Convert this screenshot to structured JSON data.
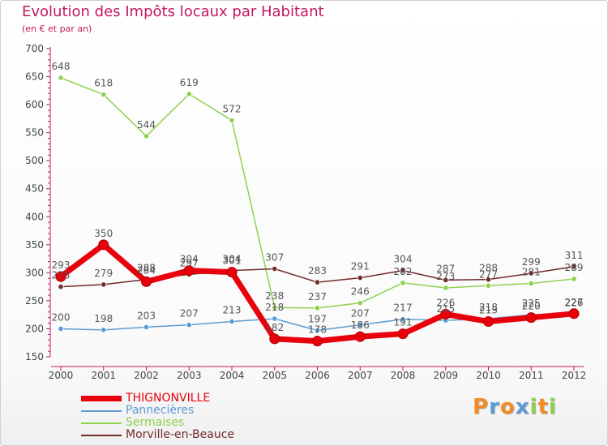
{
  "chart_data": {
    "type": "line",
    "title": "Evolution des Impôts locaux par Habitant",
    "subtitle": "(en € et par an)",
    "xlabel": "",
    "ylabel": "",
    "x": [
      "2000",
      "2001",
      "2002",
      "2003",
      "2004",
      "2005",
      "2006",
      "2007",
      "2008",
      "2009",
      "2010",
      "2011",
      "2012"
    ],
    "ylim": [
      150,
      700
    ],
    "yticks": [
      150,
      200,
      250,
      300,
      350,
      400,
      450,
      500,
      550,
      600,
      650,
      700
    ],
    "series": [
      {
        "name": "THIGNONVILLE",
        "color": "#e8000b",
        "values": [
          293,
          350,
          284,
          304,
          301,
          182,
          178,
          186,
          191,
          226,
          213,
          220,
          227
        ],
        "labels": [
          "293",
          "350",
          "284",
          "304",
          "301",
          "182",
          "178",
          "186",
          "191",
          "226",
          "213",
          "220",
          "227"
        ]
      },
      {
        "name": "Pannecières",
        "color": "#5b9bd5",
        "values": [
          200,
          198,
          203,
          207,
          213,
          218,
          197,
          207,
          217,
          215,
          218,
          225,
          226
        ],
        "labels": [
          "200",
          "198",
          "203",
          "207",
          "213",
          "218",
          "197",
          "207",
          "217",
          "215",
          "218",
          "225",
          "226"
        ]
      },
      {
        "name": "Sermaises",
        "color": "#8fd14f",
        "values": [
          648,
          618,
          544,
          619,
          572,
          238,
          237,
          246,
          282,
          273,
          277,
          281,
          289
        ],
        "labels": [
          "648",
          "618",
          "544",
          "619",
          "572",
          "238",
          "237",
          "246",
          "282",
          "273",
          "277",
          "281",
          "289"
        ]
      },
      {
        "name": "Morville-en-Beauce",
        "color": "#722a2a",
        "values": [
          275,
          279,
          288,
          297,
          304,
          307,
          283,
          291,
          304,
          287,
          288,
          299,
          311
        ],
        "labels": [
          "275",
          "279",
          "288",
          "297",
          "304",
          "307",
          "283",
          "291",
          "304",
          "287",
          "288",
          "299",
          "311"
        ]
      }
    ],
    "legend_position": "bottom-left"
  },
  "logo": {
    "letters": [
      "P",
      "r",
      "o",
      "x",
      "i",
      "t",
      "i"
    ],
    "colors": [
      "#f28c28",
      "#5b9bd5",
      "#f28c28",
      "#5b9bd5",
      "#8fd14f",
      "#f28c28",
      "#8fd14f"
    ]
  }
}
